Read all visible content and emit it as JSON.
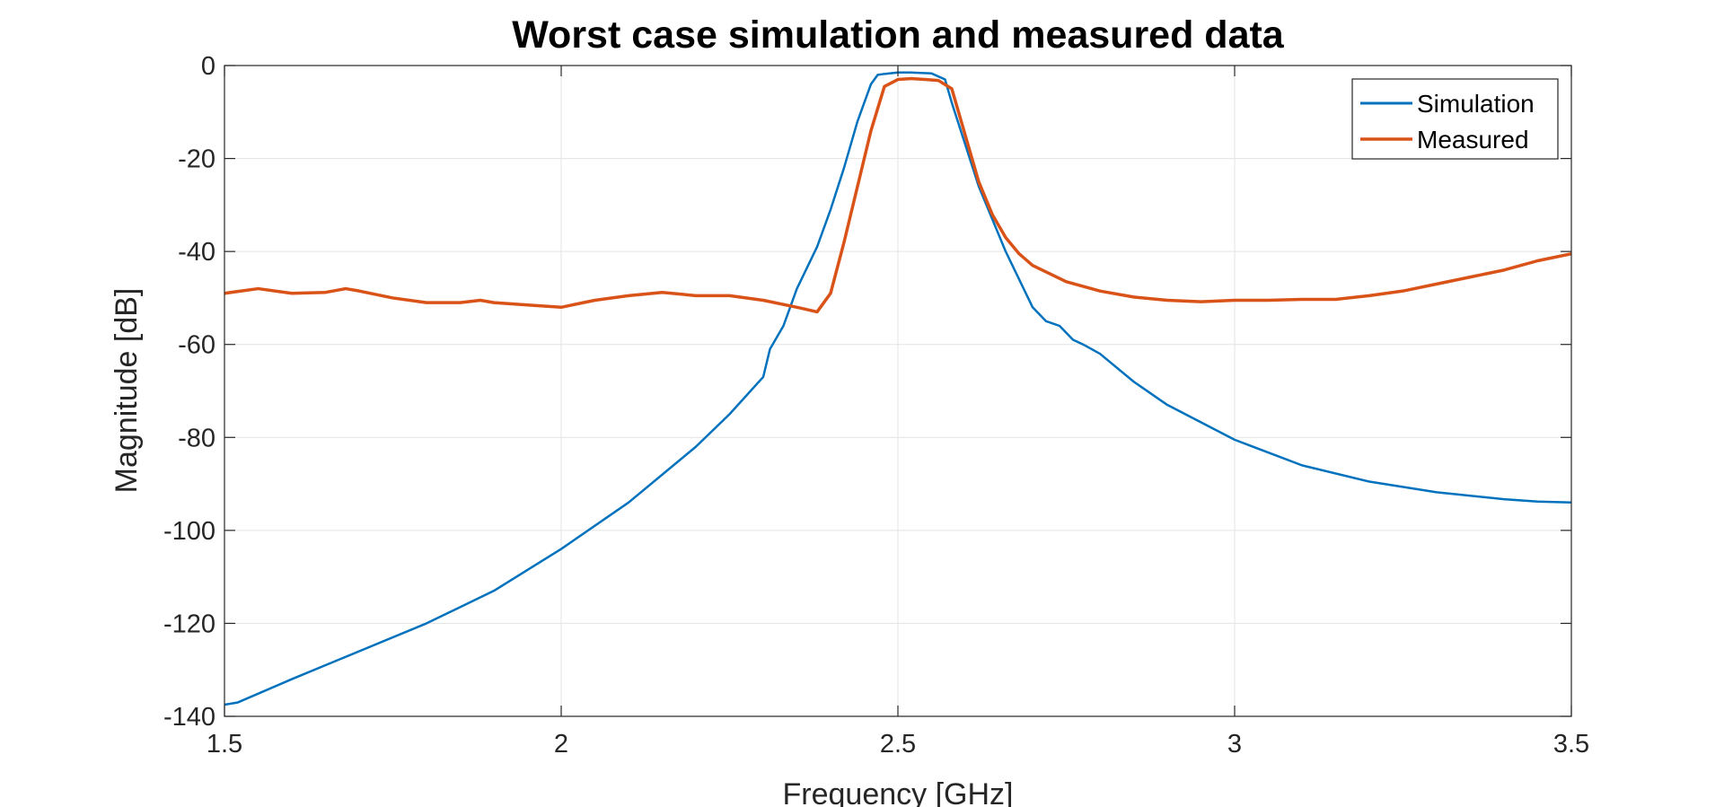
{
  "chart_data": {
    "type": "line",
    "title": "Worst case simulation and measured data",
    "xlabel": "Frequency [GHz]",
    "ylabel": "Magnitude [dB]",
    "xlim": [
      1.5,
      3.5
    ],
    "ylim": [
      -140,
      0
    ],
    "xticks": [
      1.5,
      2,
      2.5,
      3,
      3.5
    ],
    "xtick_labels": [
      "1.5",
      "2",
      "2.5",
      "3",
      "3.5"
    ],
    "yticks": [
      0,
      -20,
      -40,
      -60,
      -80,
      -100,
      -120,
      -140
    ],
    "ytick_labels": [
      "0",
      "-20",
      "-40",
      "-60",
      "-80",
      "-100",
      "-120",
      "-140"
    ],
    "grid": true,
    "legend_position": "top-right",
    "series": [
      {
        "name": "Simulation",
        "color": "#0072BD",
        "x": [
          1.5,
          1.52,
          1.6,
          1.7,
          1.8,
          1.9,
          2.0,
          2.1,
          2.2,
          2.25,
          2.3,
          2.31,
          2.33,
          2.35,
          2.38,
          2.4,
          2.42,
          2.44,
          2.46,
          2.47,
          2.48,
          2.5,
          2.52,
          2.55,
          2.57,
          2.58,
          2.6,
          2.62,
          2.64,
          2.66,
          2.68,
          2.7,
          2.72,
          2.74,
          2.76,
          2.775,
          2.8,
          2.85,
          2.9,
          3.0,
          3.1,
          3.2,
          3.3,
          3.4,
          3.45,
          3.5
        ],
        "values": [
          -137.5,
          -137,
          -132,
          -126,
          -120,
          -113,
          -104,
          -94,
          -82,
          -75,
          -67,
          -61,
          -56,
          -48,
          -39,
          -31,
          -22,
          -12,
          -4,
          -2,
          -1.8,
          -1.5,
          -1.5,
          -1.7,
          -3,
          -8,
          -17,
          -26,
          -33,
          -40,
          -46,
          -52,
          -55,
          -56,
          -59,
          -60,
          -62,
          -68,
          -73,
          -80.5,
          -86,
          -89.5,
          -91.8,
          -93.3,
          -93.8,
          -94
        ]
      },
      {
        "name": "Measured",
        "color": "#D95319",
        "x": [
          1.5,
          1.55,
          1.6,
          1.65,
          1.68,
          1.7,
          1.75,
          1.8,
          1.85,
          1.88,
          1.9,
          1.95,
          2.0,
          2.05,
          2.1,
          2.15,
          2.2,
          2.25,
          2.3,
          2.35,
          2.38,
          2.4,
          2.42,
          2.44,
          2.46,
          2.48,
          2.5,
          2.52,
          2.54,
          2.56,
          2.58,
          2.6,
          2.62,
          2.64,
          2.66,
          2.68,
          2.7,
          2.75,
          2.8,
          2.85,
          2.9,
          2.95,
          3.0,
          3.05,
          3.1,
          3.15,
          3.2,
          3.25,
          3.3,
          3.35,
          3.4,
          3.45,
          3.5
        ],
        "values": [
          -49,
          -48,
          -49,
          -48.8,
          -48,
          -48.5,
          -50,
          -51,
          -51,
          -50.5,
          -51,
          -51.5,
          -52,
          -50.5,
          -49.5,
          -48.8,
          -49.5,
          -49.5,
          -50.5,
          -52,
          -53,
          -49,
          -38,
          -26,
          -14,
          -4.5,
          -3,
          -2.8,
          -3,
          -3.2,
          -5,
          -15,
          -25,
          -32,
          -37,
          -40.5,
          -43,
          -46.5,
          -48.5,
          -49.8,
          -50.5,
          -50.8,
          -50.5,
          -50.5,
          -50.3,
          -50.3,
          -49.5,
          -48.5,
          -47,
          -45.5,
          -44,
          -42,
          -40.5
        ]
      }
    ]
  }
}
